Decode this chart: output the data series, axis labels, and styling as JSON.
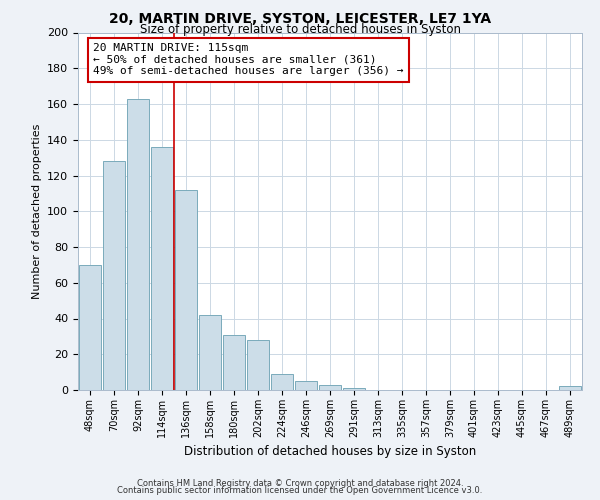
{
  "title": "20, MARTIN DRIVE, SYSTON, LEICESTER, LE7 1YA",
  "subtitle": "Size of property relative to detached houses in Syston",
  "xlabel": "Distribution of detached houses by size in Syston",
  "ylabel": "Number of detached properties",
  "bar_labels": [
    "48sqm",
    "70sqm",
    "92sqm",
    "114sqm",
    "136sqm",
    "158sqm",
    "180sqm",
    "202sqm",
    "224sqm",
    "246sqm",
    "269sqm",
    "291sqm",
    "313sqm",
    "335sqm",
    "357sqm",
    "379sqm",
    "401sqm",
    "423sqm",
    "445sqm",
    "467sqm",
    "489sqm"
  ],
  "bar_values": [
    70,
    128,
    163,
    136,
    112,
    42,
    31,
    28,
    9,
    5,
    3,
    1,
    0,
    0,
    0,
    0,
    0,
    0,
    0,
    0,
    2
  ],
  "bar_color": "#ccdde8",
  "bar_edge_color": "#7aaabb",
  "marker_bar_index": 3,
  "marker_label": "20 MARTIN DRIVE: 115sqm",
  "annotation_line1": "← 50% of detached houses are smaller (361)",
  "annotation_line2": "49% of semi-detached houses are larger (356) →",
  "annotation_box_color": "#ffffff",
  "annotation_box_edge": "#cc0000",
  "marker_line_color": "#cc0000",
  "ylim": [
    0,
    200
  ],
  "yticks": [
    0,
    20,
    40,
    60,
    80,
    100,
    120,
    140,
    160,
    180,
    200
  ],
  "footer1": "Contains HM Land Registry data © Crown copyright and database right 2024.",
  "footer2": "Contains public sector information licensed under the Open Government Licence v3.0.",
  "background_color": "#eef2f7",
  "plot_bg_color": "#ffffff",
  "grid_color": "#ccd8e4"
}
